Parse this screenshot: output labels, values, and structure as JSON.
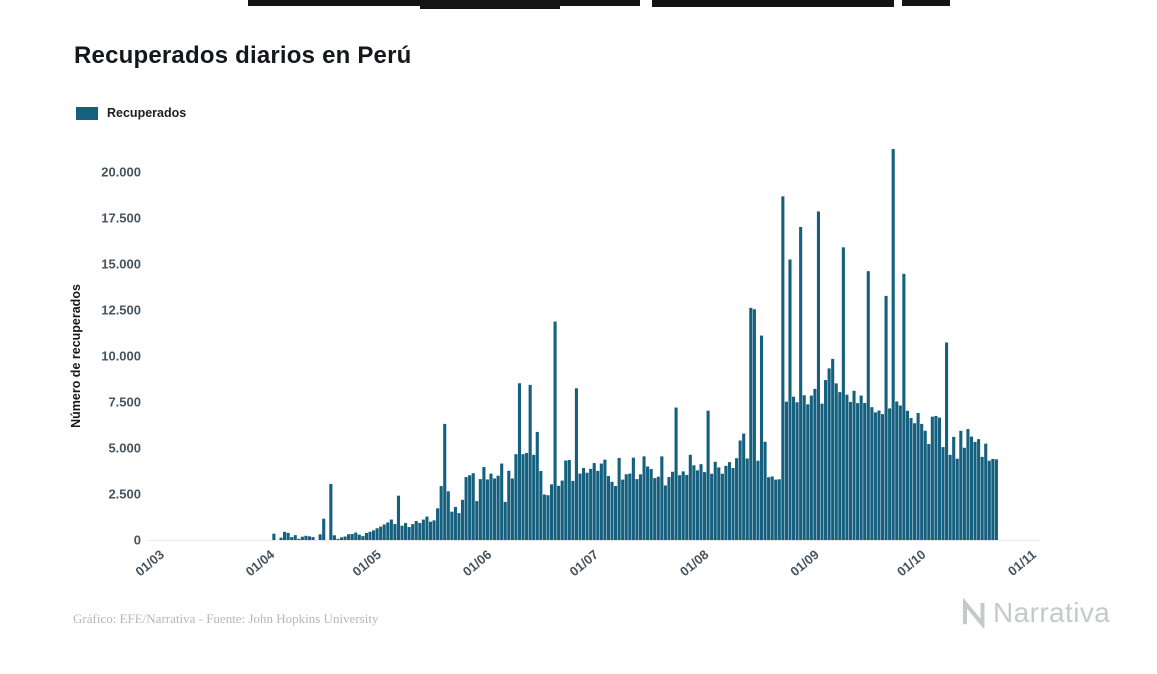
{
  "page": {
    "title": "Recuperados diarios en Perú",
    "legend": {
      "label": "Recuperados"
    },
    "footer": {
      "credit": "Gráfico: EFE/Narrativa - Fuente: John Hopkins University"
    },
    "brand": {
      "name": "Narrativa"
    }
  },
  "chart_data": {
    "type": "bar",
    "title": "Recuperados diarios en Perú",
    "series_name": "Recuperados",
    "xlabel": "",
    "ylabel": "Número de recuperados",
    "bar_color": "#14607e",
    "grid": false,
    "legend_position": "top-left",
    "ylim": [
      0,
      21500
    ],
    "y_ticks": [
      0,
      2500,
      5000,
      7500,
      10000,
      12500,
      15000,
      17500,
      20000
    ],
    "y_tick_labels": [
      "0",
      "2.500",
      "5.000",
      "7.500",
      "10.000",
      "12.500",
      "15.000",
      "17.500",
      "20.000"
    ],
    "x_tick_labels": [
      "01/03",
      "01/04",
      "01/05",
      "01/06",
      "01/07",
      "01/08",
      "01/09",
      "01/10",
      "01/11"
    ],
    "x_tick_day_offsets": [
      0,
      31,
      61,
      92,
      122,
      153,
      184,
      214,
      245
    ],
    "x_start_label": "01/03",
    "values": [
      0,
      0,
      0,
      0,
      0,
      0,
      0,
      0,
      0,
      0,
      0,
      0,
      0,
      0,
      0,
      0,
      0,
      0,
      0,
      0,
      0,
      0,
      0,
      0,
      0,
      0,
      0,
      0,
      0,
      0,
      0,
      0,
      344,
      0,
      127,
      443,
      389,
      156,
      263,
      66,
      180,
      230,
      199,
      158,
      0,
      307,
      1156,
      0,
      3050,
      256,
      63,
      145,
      190,
      313,
      328,
      406,
      292,
      210,
      383,
      447,
      524,
      637,
      730,
      843,
      954,
      1113,
      866,
      2409,
      777,
      922,
      704,
      863,
      1035,
      924,
      1111,
      1275,
      996,
      1068,
      1722,
      2929,
      6310,
      2649,
      1538,
      1797,
      1460,
      2183,
      3420,
      3518,
      3629,
      2111,
      3310,
      3970,
      3290,
      3608,
      3345,
      3496,
      4155,
      2071,
      3762,
      3343,
      4664,
      8518,
      4665,
      4728,
      8431,
      4631,
      5874,
      3752,
      2470,
      2435,
      3022,
      11871,
      2945,
      3230,
      4318,
      4348,
      3213,
      8247,
      3610,
      3909,
      3657,
      3867,
      4180,
      3756,
      4154,
      4368,
      3475,
      3164,
      2933,
      4460,
      3282,
      3572,
      3608,
      4476,
      3310,
      3568,
      4546,
      3996,
      3853,
      3362,
      3440,
      4546,
      2964,
      3419,
      3709,
      7199,
      3521,
      3729,
      3532,
      4630,
      4059,
      3785,
      4120,
      3688,
      7028,
      3601,
      4250,
      3945,
      3605,
      4030,
      4232,
      3911,
      4446,
      5408,
      5784,
      4430,
      12617,
      12540,
      4310,
      11110,
      5340,
      3412,
      3456,
      3283,
      3300,
      18674,
      7520,
      15244,
      7787,
      7486,
      17013,
      7865,
      7373,
      7851,
      8213,
      17856,
      7411,
      8692,
      9327,
      9842,
      8511,
      8036,
      15905,
      7897,
      7505,
      8109,
      7438,
      7850,
      7445,
      14609,
      7218,
      6935,
      7034,
      6841,
      13266,
      7150,
      21251,
      7529,
      7308,
      14468,
      7023,
      6628,
      6345,
      6906,
      6311,
      5938,
      5218,
      6702,
      6745,
      6652,
      5049,
      10736,
      4628,
      5605,
      4419,
      5934,
      5012,
      6029,
      5621,
      5331,
      5480,
      4517,
      5236,
      4310,
      4408,
      4385
    ]
  }
}
